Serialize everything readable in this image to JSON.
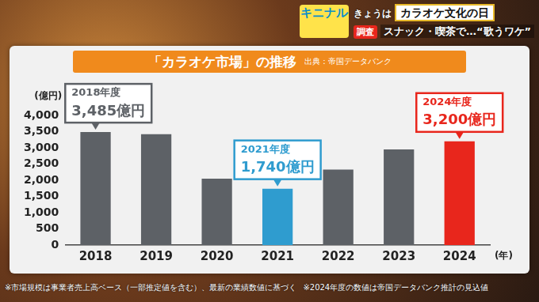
{
  "header": {
    "logo": "キニナル",
    "topic_prefix": "きょうは",
    "topic": "カラオケ文化の日",
    "tag": "調査",
    "headline": "スナック・喫茶で…“歌うワケ”"
  },
  "chart_data": {
    "type": "bar",
    "title": "「カラオケ市場」の推移",
    "subtitle": "出典：帝国データバンク",
    "y_label": "(億円)",
    "x_label": "(年)",
    "categories": [
      "2018",
      "2019",
      "2020",
      "2021",
      "2022",
      "2023",
      "2024"
    ],
    "values": [
      3485,
      3420,
      2050,
      1740,
      2330,
      2950,
      3200
    ],
    "colors": [
      "#5d6166",
      "#5d6166",
      "#5d6166",
      "#2f9ccf",
      "#5d6166",
      "#5d6166",
      "#e8261c"
    ],
    "ylim": [
      0,
      4000
    ],
    "yticks": [
      0,
      500,
      {
        "value": 1000,
        "label": "1,000"
      },
      {
        "value": 1500,
        "label": "1,500"
      },
      {
        "value": 2000,
        "label": "2,000"
      },
      {
        "value": 2500,
        "label": "2,500"
      },
      {
        "value": 3000,
        "label": "3,000"
      },
      {
        "value": 3500,
        "label": "3,500"
      },
      {
        "value": 4000,
        "label": "4,000"
      }
    ],
    "grid": false,
    "annotations": [
      {
        "category": "2018",
        "text": [
          "2018年度",
          "3,485億円"
        ]
      },
      {
        "category": "2021",
        "text": [
          "2021年度",
          "1,740億円"
        ]
      },
      {
        "category": "2024",
        "text": [
          "2024年度",
          "3,200億円"
        ]
      }
    ]
  },
  "footnotes": [
    "※市場規模は事業者売上高ベース（一部推定値を含む）、最新の業績数値に基づく",
    "※2024年度の数値は帝国データバンク推計の見込値"
  ]
}
